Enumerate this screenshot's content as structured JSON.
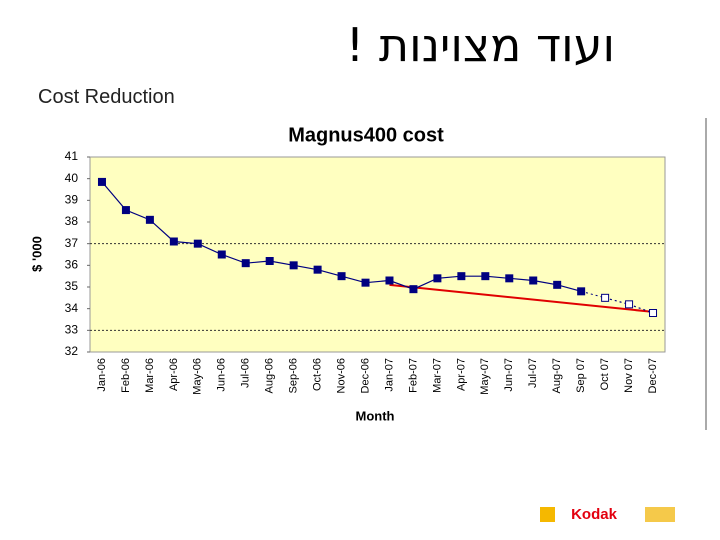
{
  "slide_title": "ועוד מצוינות !",
  "subtitle": "Cost Reduction",
  "logo": "Kodak",
  "chart_data": {
    "type": "line",
    "title": "Magnus400 cost",
    "x_label": "Month",
    "y_label": "$ '000",
    "categories": [
      "Jan-06",
      "Feb-06",
      "Mar-06",
      "Apr-06",
      "May-06",
      "Jun-06",
      "Jul-06",
      "Aug-06",
      "Sep-06",
      "Oct-06",
      "Nov-06",
      "Dec-06",
      "Jan-07",
      "Feb-07",
      "Mar-07",
      "Apr-07",
      "May-07",
      "Jun-07",
      "Jul-07",
      "Aug-07",
      "Sep 07",
      "Oct 07",
      "Nov 07",
      "Dec-07"
    ],
    "series": [
      {
        "color": "#000080",
        "marker": "filled",
        "line": "solid",
        "values": [
          39.85,
          38.55,
          38.1,
          37.1,
          37.0,
          36.5,
          36.1,
          36.2,
          36.0,
          35.8,
          35.5,
          35.2,
          35.3,
          34.9,
          35.4,
          35.5,
          35.5,
          35.4,
          35.3,
          35.1,
          34.8,
          null,
          null,
          null
        ]
      },
      {
        "color": "#000080",
        "marker": "hollow",
        "line": "dotted",
        "values": [
          null,
          null,
          null,
          null,
          null,
          null,
          null,
          null,
          null,
          null,
          null,
          null,
          null,
          null,
          null,
          null,
          null,
          null,
          null,
          null,
          null,
          34.5,
          34.2,
          33.8
        ]
      }
    ],
    "trend": {
      "color": "#e00000",
      "from": "Jan-07",
      "to": "Dec-07",
      "values": [
        35.1,
        33.85
      ]
    },
    "ylim": [
      32,
      41
    ],
    "yticks": [
      32,
      33,
      34,
      35,
      36,
      37,
      38,
      39,
      40,
      41
    ],
    "reference_lines": [
      33,
      37
    ],
    "plot_color": "#ffffc0"
  }
}
